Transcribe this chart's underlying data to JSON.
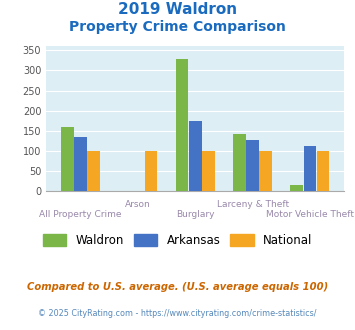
{
  "title_line1": "2019 Waldron",
  "title_line2": "Property Crime Comparison",
  "title_color": "#1a6bbf",
  "waldron": [
    160,
    0,
    328,
    143,
    15
  ],
  "arkansas": [
    135,
    0,
    175,
    128,
    112
  ],
  "national": [
    100,
    100,
    100,
    100,
    100
  ],
  "waldron_color": "#7ab648",
  "arkansas_color": "#4472c4",
  "national_color": "#f5a623",
  "ylim": [
    0,
    360
  ],
  "yticks": [
    0,
    50,
    100,
    150,
    200,
    250,
    300,
    350
  ],
  "bg_color": "#ddeef4",
  "legend_labels": [
    "Waldron",
    "Arkansas",
    "National"
  ],
  "top_labels": [
    "",
    "Arson",
    "",
    "Larceny & Theft",
    ""
  ],
  "bottom_labels": [
    "All Property Crime",
    "",
    "Burglary",
    "",
    "Motor Vehicle Theft"
  ],
  "footnote1": "Compared to U.S. average. (U.S. average equals 100)",
  "footnote2": "© 2025 CityRating.com - https://www.cityrating.com/crime-statistics/",
  "footnote1_color": "#cc6600",
  "footnote2_color": "#5588bb"
}
